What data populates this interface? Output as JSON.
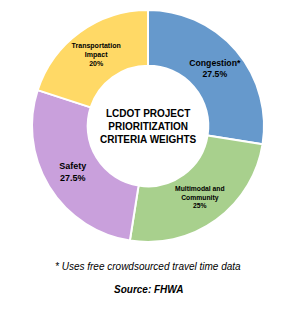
{
  "chart_data": {
    "type": "pie",
    "title": "LCDOT PROJECT\nPRIORITIZATION\nCRITERIA WEIGHTS",
    "categories": [
      "Congestion*\n27.5%",
      "Multimodal and\nCommunity\n25%",
      "Safety\n27.5%",
      "Transportation\nImpact\n20%"
    ],
    "values": [
      27.5,
      25.0,
      27.5,
      20.0
    ],
    "colors": [
      "#6699CC",
      "#A8D08D",
      "#C9A0DC",
      "#FFD966"
    ],
    "annotations": [
      "* Uses free crowdsourced travel time data",
      "Source: FHWA"
    ]
  }
}
